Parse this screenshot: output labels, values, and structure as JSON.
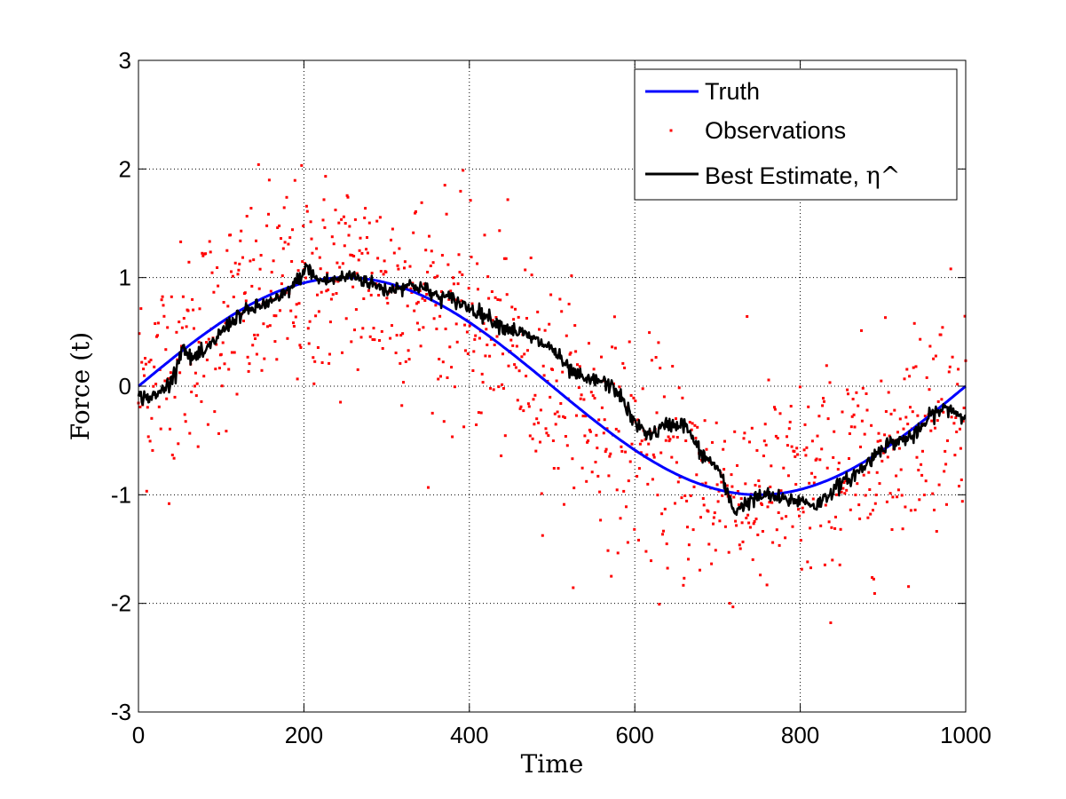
{
  "chart_data": {
    "type": "line",
    "title": "",
    "xlabel": "Time",
    "ylabel": "Force ",
    "ylabel_symbol": "(t)",
    "xlim": [
      0,
      1000
    ],
    "ylim": [
      -3,
      3
    ],
    "xticks": [
      0,
      200,
      400,
      600,
      800,
      1000
    ],
    "yticks": [
      -3,
      -2,
      -1,
      0,
      1,
      2,
      3
    ],
    "grid": true,
    "legend_position": "top-right",
    "series": [
      {
        "name": "Truth",
        "kind": "line",
        "color": "#0000ff",
        "function": "sin(2*pi*t/1000)",
        "x": [
          0,
          100,
          200,
          250,
          300,
          400,
          500,
          600,
          700,
          750,
          800,
          900,
          1000
        ],
        "y": [
          0,
          0.59,
          0.95,
          1.0,
          0.95,
          0.59,
          0,
          -0.59,
          -0.95,
          -1.0,
          -0.95,
          -0.59,
          0
        ]
      },
      {
        "name": "Observations",
        "kind": "scatter",
        "color": "#ff0000",
        "noise_std": 0.5,
        "count": 1000,
        "x": [
          0,
          1000
        ]
      },
      {
        "name": "Best Estimate, ",
        "name_symbol": "η^",
        "kind": "line",
        "color": "#000000",
        "x": [
          0,
          20,
          40,
          55,
          60,
          80,
          100,
          120,
          150,
          170,
          190,
          205,
          215,
          230,
          260,
          280,
          300,
          320,
          340,
          360,
          380,
          400,
          420,
          440,
          460,
          480,
          500,
          520,
          540,
          560,
          580,
          600,
          620,
          640,
          660,
          680,
          700,
          720,
          740,
          760,
          780,
          800,
          820,
          840,
          860,
          880,
          900,
          920,
          940,
          960,
          980,
          1000
        ],
        "y": [
          -0.1,
          -0.1,
          0.05,
          0.4,
          0.25,
          0.3,
          0.5,
          0.65,
          0.75,
          0.8,
          0.95,
          1.1,
          0.98,
          0.97,
          1.02,
          0.95,
          0.88,
          0.93,
          0.92,
          0.83,
          0.8,
          0.72,
          0.65,
          0.55,
          0.5,
          0.42,
          0.35,
          0.15,
          0.05,
          0.05,
          -0.05,
          -0.35,
          -0.45,
          -0.35,
          -0.35,
          -0.62,
          -0.75,
          -1.15,
          -1.05,
          -1.0,
          -1.05,
          -1.05,
          -1.1,
          -0.95,
          -0.85,
          -0.72,
          -0.55,
          -0.5,
          -0.45,
          -0.25,
          -0.2,
          -0.3
        ]
      }
    ]
  }
}
